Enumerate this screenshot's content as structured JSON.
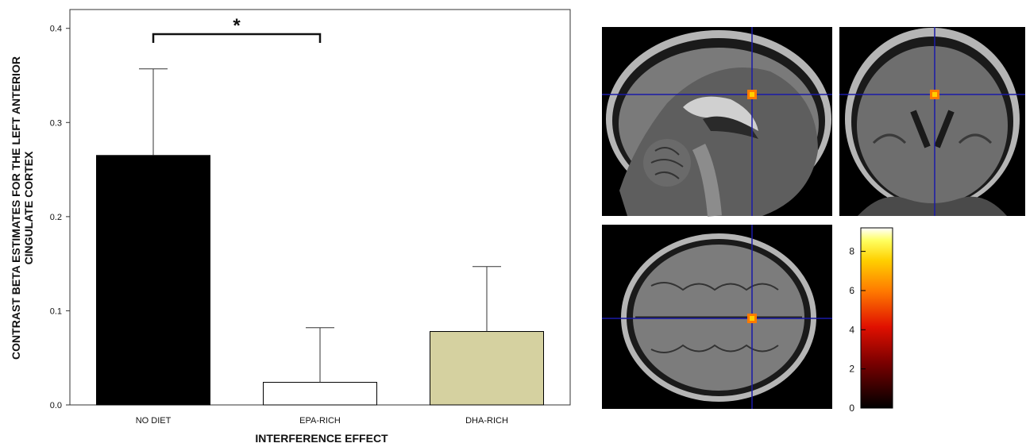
{
  "chart_data": {
    "type": "bar",
    "categories": [
      "NO DIET",
      "EPA-RICH",
      "DHA-RICH"
    ],
    "values": [
      0.265,
      0.024,
      0.078
    ],
    "errors": [
      0.092,
      0.058,
      0.069
    ],
    "bar_colors": [
      "#000000",
      "#ffffff",
      "#d5d1a0"
    ],
    "xlabel": "INTERFERENCE EFFECT",
    "ylabel_line1": "CONTRAST BETA ESTIMATES FOR THE LEFT ANTERIOR",
    "ylabel_line2": "CINGULATE CORTEX",
    "ylim": [
      0,
      0.42
    ],
    "yticks": [
      "0.0",
      "0.1",
      "0.2",
      "0.3",
      "0.4"
    ],
    "significance": {
      "from": "NO DIET",
      "to": "EPA-RICH",
      "label": "*"
    }
  },
  "brain_panels": {
    "views": [
      "sagittal",
      "coronal",
      "axial"
    ],
    "crosshair_color": "#1a1aa8",
    "colorbar": {
      "ticks": [
        "0",
        "2",
        "4",
        "6",
        "8"
      ],
      "min": 0,
      "max": 9.2
    }
  }
}
